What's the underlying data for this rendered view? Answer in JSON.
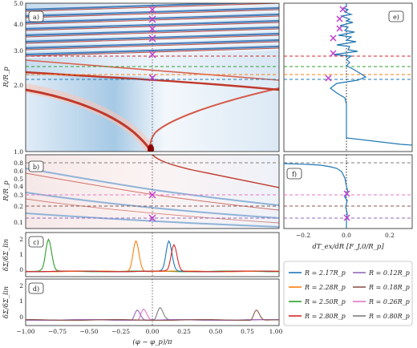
{
  "panels": {
    "a": "a)",
    "b": "b)",
    "c": "c)",
    "d": "d)",
    "e": "e)",
    "f": "f)"
  },
  "axes": {
    "a_ylabel": "R/R_p",
    "b_ylabel": "R/R_p",
    "c_ylabel": "δΣ/δΣ_lin",
    "d_ylabel": "δΣ/δΣ_lin",
    "d_xlabel": "(φ − φ_p)/π",
    "e_xlabel": "dT_ex/dR [F_J,0/R_p]"
  },
  "colors": {
    "R217": "#1f77b4",
    "R228": "#ff7f0e",
    "R250": "#2ca02c",
    "R280": "#d62728",
    "R012": "#9467bd",
    "R018": "#8c564b",
    "R026": "#e377c2",
    "R080": "#7f7f7f",
    "cross": "#c040d0"
  },
  "legend": [
    {
      "key": "R217",
      "label": "R = 2.17R_p"
    },
    {
      "key": "R012",
      "label": "R = 0.12R_p"
    },
    {
      "key": "R228",
      "label": "R = 2.28R_p"
    },
    {
      "key": "R018",
      "label": "R = 0.18R_p"
    },
    {
      "key": "R250",
      "label": "R = 2.50R_p"
    },
    {
      "key": "R026",
      "label": "R = 0.26R_p"
    },
    {
      "key": "R280",
      "label": "R = 2.80R_p"
    },
    {
      "key": "R080",
      "label": "R = 0.80R_p"
    }
  ],
  "ticks": {
    "a_y": [
      "5.0",
      "4.0",
      "3.0",
      "2.0",
      "1.0"
    ],
    "b_y": [
      "0.8",
      "0.6",
      "0.5",
      "0.4",
      "0.3",
      "0.2",
      "0.1"
    ],
    "c_y": [
      "2",
      "1",
      "0"
    ],
    "d_y": [
      "2",
      "1",
      "0"
    ],
    "x": [
      "−1.00",
      "−0.75",
      "−0.50",
      "−0.25",
      "0.00",
      "0.25",
      "0.50",
      "0.75",
      "1.00"
    ],
    "e_x": [
      "−0.2",
      "0.0",
      "0.2"
    ]
  },
  "chart_data": [
    {
      "type": "line",
      "panel": "c",
      "xlabel": "",
      "ylabel": "δΣ/δΣ_lin",
      "xlim": [
        -1,
        1
      ],
      "ylim": [
        -0.3,
        2.2
      ],
      "series": [
        {
          "name": "R = 2.50R_p",
          "key": "R250",
          "peak_x": -0.82,
          "peak_y": 1.8
        },
        {
          "name": "R = 2.28R_p",
          "key": "R228",
          "peak_x": -0.13,
          "peak_y": 1.75
        },
        {
          "name": "R = 2.17R_p",
          "key": "R217",
          "peak_x": 0.13,
          "peak_y": 1.7
        },
        {
          "name": "R = 2.80R_p",
          "key": "R280",
          "peak_x": 0.17,
          "peak_y": 1.5
        }
      ]
    },
    {
      "type": "line",
      "panel": "d",
      "xlabel": "(φ − φ_p)/π",
      "ylabel": "δΣ/δΣ_lin",
      "xlim": [
        -1,
        1
      ],
      "ylim": [
        -0.3,
        2.2
      ],
      "series": [
        {
          "name": "R = 0.80R_p",
          "key": "R080",
          "peak_x": 0.06,
          "peak_y": 0.65
        },
        {
          "name": "R = 0.26R_p",
          "key": "R026",
          "peak_x": -0.07,
          "peak_y": 0.6
        },
        {
          "name": "R = 0.12R_p",
          "key": "R012",
          "peak_x": -0.12,
          "peak_y": 0.55
        },
        {
          "name": "R = 0.18R_p",
          "key": "R018",
          "peak_x": 0.82,
          "peak_y": 0.55
        }
      ]
    },
    {
      "type": "line",
      "panel": "e",
      "xlabel": "dT_ex/dR [F_J,0/R_p]",
      "xlim": [
        -0.3,
        0.3
      ],
      "ylim": [
        1.0,
        5.0
      ]
    }
  ]
}
